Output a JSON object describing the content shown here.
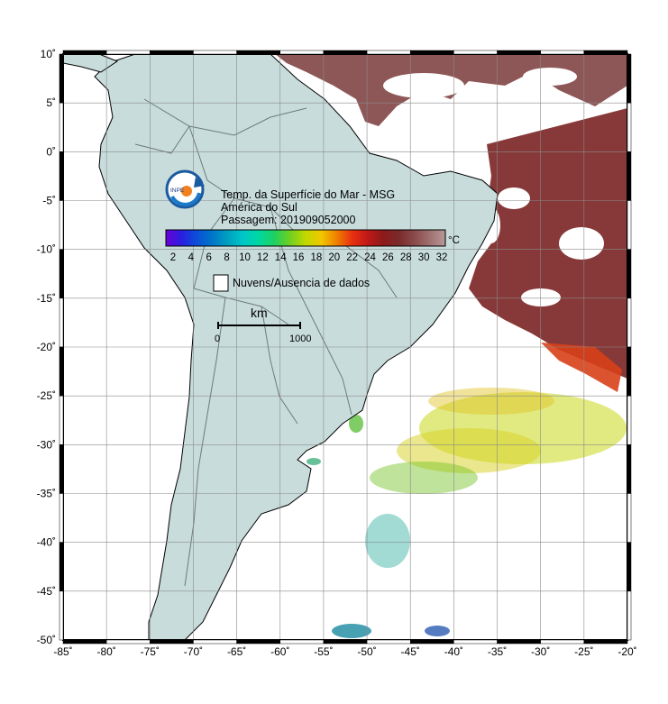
{
  "map": {
    "lon_ticks": [
      -85,
      -80,
      -75,
      -70,
      -65,
      -60,
      -55,
      -50,
      -45,
      -40,
      -35,
      -30,
      -25,
      -20
    ],
    "lat_ticks": [
      10,
      5,
      0,
      -5,
      -10,
      -15,
      -20,
      -25,
      -30,
      -35,
      -40,
      -45,
      -50
    ],
    "extent": {
      "lon_min": -85,
      "lon_max": -20,
      "lat_min": -50,
      "lat_max": 10
    },
    "degree_symbol": "˚"
  },
  "legend": {
    "title_line1": "Temp. da Superfície do Mar - MSG",
    "title_line2": "América do Sul",
    "title_line3": "Passagem: 201909052000",
    "colorbar_unit": "°C",
    "colorbar_ticks": [
      "2",
      "4",
      "6",
      "8",
      "10",
      "12",
      "14",
      "16",
      "18",
      "20",
      "22",
      "24",
      "26",
      "28",
      "30",
      "32"
    ],
    "colorbar_colors": [
      "#6a00d8",
      "#2a1ee0",
      "#0a4fd8",
      "#0077c8",
      "#00a0c0",
      "#00c8c8",
      "#00d8a0",
      "#20d060",
      "#70d020",
      "#c0d800",
      "#f0c800",
      "#f08000",
      "#e83010",
      "#c01818",
      "#8c1a1a",
      "#7a2a2a",
      "#8a4a4a",
      "#a07070",
      "#b89898"
    ],
    "no_data_label": "Nuvens/Ausencia de dados",
    "scale_unit": "km",
    "scale_start": "0",
    "scale_end": "1000"
  },
  "logo": {
    "text": "INPE"
  },
  "colors": {
    "land": "#c8dcdc",
    "ocean": "#ffffff",
    "grid": "#8a8a8a",
    "warm_sst": "#8a3a3a",
    "hot_sst": "#b01e1e"
  }
}
